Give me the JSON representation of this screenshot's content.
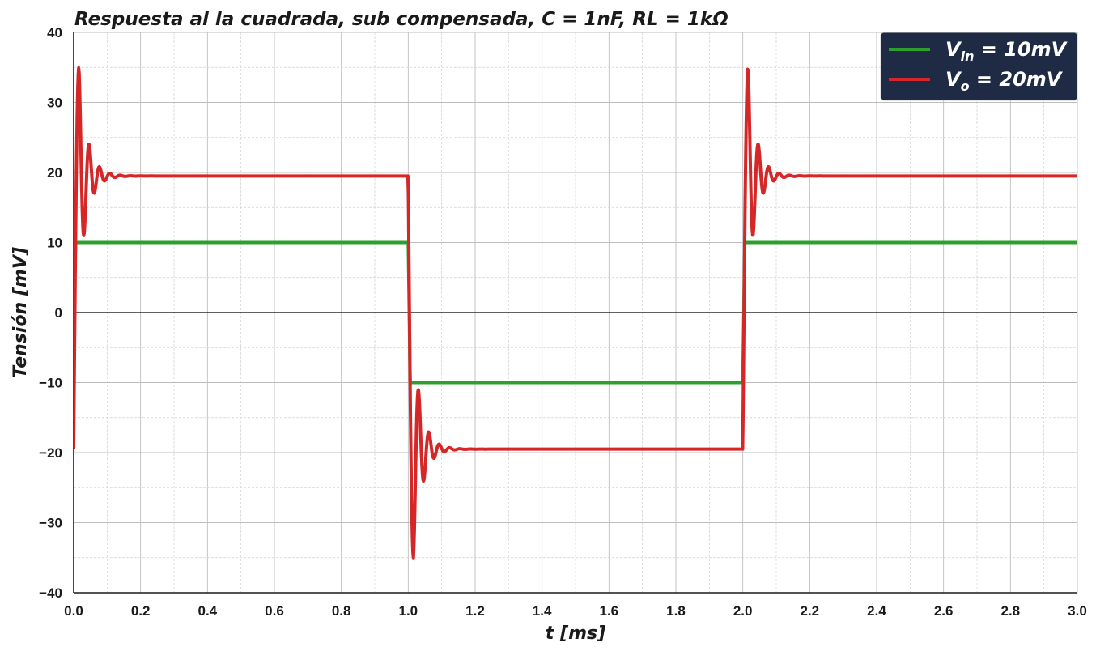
{
  "chart_data": {
    "type": "line",
    "title": "Respuesta al la cuadrada, sub compensada, C = 1nF, RL = 1kΩ",
    "xlabel": "t [ms]",
    "ylabel": "Tensión [mV]",
    "xlim": [
      0.0,
      3.0
    ],
    "ylim": [
      -40,
      40
    ],
    "x_ticks": [
      "0.0",
      "0.2",
      "0.4",
      "0.6",
      "0.8",
      "1.0",
      "1.2",
      "1.4",
      "1.6",
      "1.8",
      "2.0",
      "2.2",
      "2.4",
      "2.6",
      "2.8",
      "3.0"
    ],
    "y_ticks": [
      "40",
      "30",
      "20",
      "10",
      "0",
      "−10",
      "−20",
      "−30",
      "−40"
    ],
    "grid": true,
    "legend_position": "top-right",
    "series": [
      {
        "name": "V_in = 10mV",
        "legend_main": "V",
        "legend_sub": "in",
        "legend_rest": " = 10mV",
        "color": "#2ca02c",
        "period_ms": 2.0,
        "amplitude_mV": 10
      },
      {
        "name": "V_o = 20mV",
        "legend_main": "V",
        "legend_sub": "o",
        "legend_rest": " = 20mV",
        "color": "#d62728",
        "period_ms": 2.0,
        "steady_state_mV": 19.5,
        "first_peak_mV": 35,
        "ringing_period_ms": 0.031,
        "ringing_decay_ms": 0.025
      }
    ]
  },
  "colors": {
    "legend_background": "#1f2a44",
    "zero_line": "#000000",
    "grid": "#bbbbbb"
  }
}
